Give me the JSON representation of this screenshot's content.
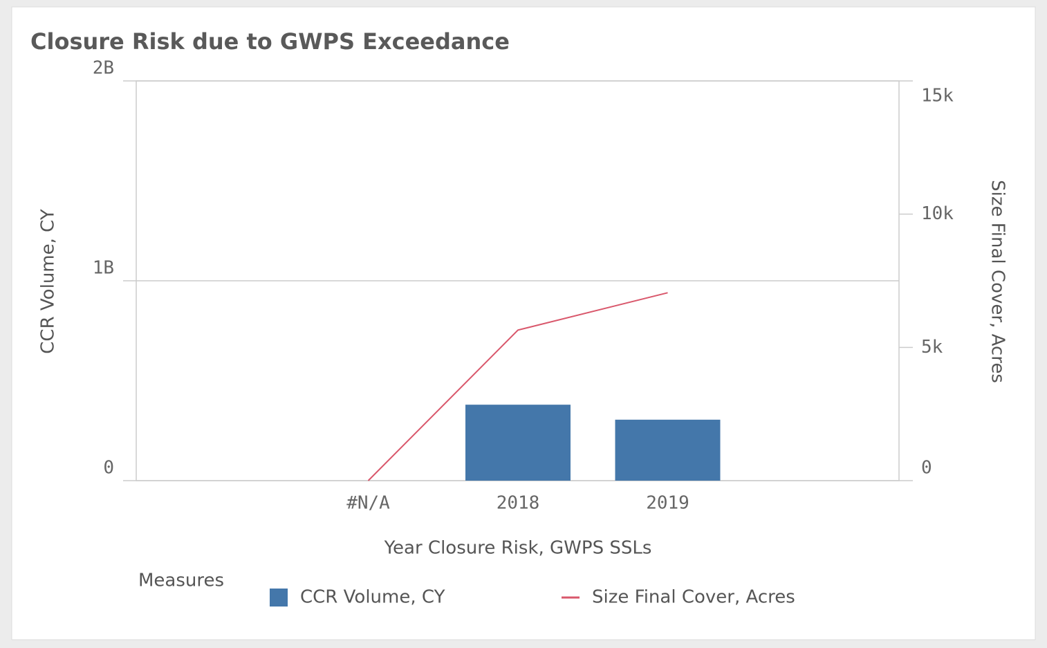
{
  "chart_data": {
    "type": "bar-line",
    "title": "Closure Risk due to GWPS Exceedance",
    "x_label": "Year Closure Risk, GWPS SSLs",
    "y_label": "CCR Volume, CY",
    "y2_label": "Size Final Cover, Acres",
    "legend_title": "Measures",
    "categories": [
      "#N/A",
      "2018",
      "2019"
    ],
    "series": [
      {
        "name": "CCR Volume, CY",
        "type": "bar",
        "color": "#4477aa",
        "values": [
          null,
          380000000,
          305000000
        ]
      },
      {
        "name": "Size Final Cover, Acres",
        "type": "line",
        "axis": "y2",
        "color": "#d9576b",
        "values": [
          0,
          5650,
          7050
        ]
      }
    ],
    "ylim": [
      0,
      2000000000
    ],
    "yticks": [
      0,
      {
        "value": 1000000000,
        "label": "1B"
      },
      {
        "value": 2000000000,
        "label": "2B"
      }
    ],
    "y2lim": [
      0,
      15000
    ],
    "y2ticks": [
      0,
      {
        "value": 5000,
        "label": "5k"
      },
      {
        "value": 10000,
        "label": "10k"
      },
      {
        "value": 15000,
        "label": "15k"
      }
    ],
    "grid": true
  }
}
